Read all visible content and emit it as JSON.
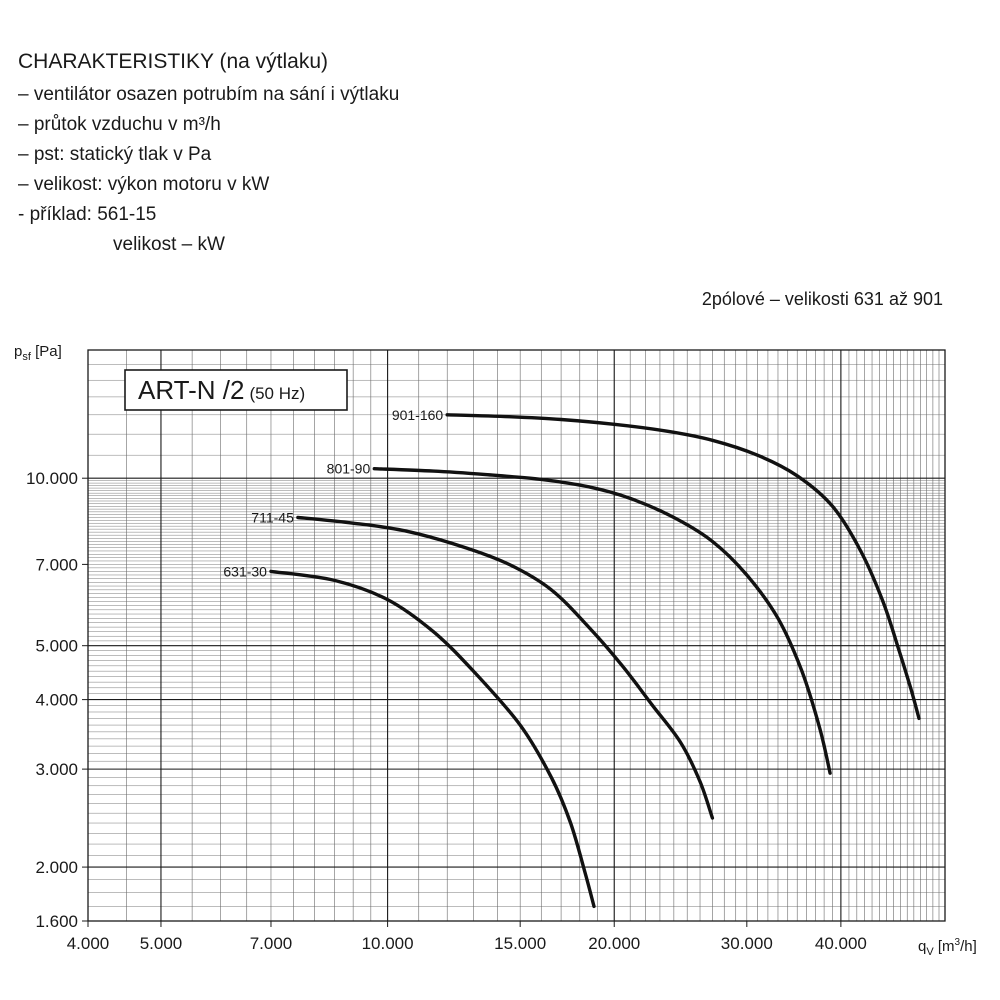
{
  "header": {
    "title": "CHARAKTERISTIKY (na výtlaku)",
    "lines": [
      "– ventilátor osazen potrubím na sání i výtlaku",
      "– průtok vzduchu v m³/h",
      "– pst: statický tlak v Pa",
      "– velikost: výkon motoru v kW",
      "- příklad: 561-15",
      "velikost – kW"
    ]
  },
  "subtitle": "2pólové – velikosti 631 až 901",
  "chart_data": {
    "type": "line",
    "x_scale": "log",
    "y_scale": "log",
    "xlim": [
      4000,
      55000
    ],
    "ylim": [
      1600,
      17000
    ],
    "grid": true,
    "box_label": {
      "main": "ART-N /2",
      "sub": "(50 Hz)"
    },
    "ylabel": {
      "main": "p",
      "sub": "sf",
      "unit": " [Pa]"
    },
    "xlabel": {
      "main": "q",
      "sub": "V",
      "unit_pre": " [m",
      "sup": "3",
      "unit_post": "/h]"
    },
    "x_ticks": [
      {
        "value": 4000,
        "label": "4.000"
      },
      {
        "value": 5000,
        "label": "5.000"
      },
      {
        "value": 7000,
        "label": "7.000"
      },
      {
        "value": 10000,
        "label": "10.000"
      },
      {
        "value": 15000,
        "label": "15.000"
      },
      {
        "value": 20000,
        "label": "20.000"
      },
      {
        "value": 30000,
        "label": "30.000"
      },
      {
        "value": 40000,
        "label": "40.000"
      }
    ],
    "y_ticks": [
      {
        "value": 1600,
        "label": "1.600"
      },
      {
        "value": 2000,
        "label": "2.000"
      },
      {
        "value": 3000,
        "label": "3.000"
      },
      {
        "value": 4000,
        "label": "4.000"
      },
      {
        "value": 5000,
        "label": "5.000"
      },
      {
        "value": 7000,
        "label": "7.000"
      },
      {
        "value": 10000,
        "label": "10.000"
      }
    ],
    "series": [
      {
        "name": "631-30",
        "x": [
          7000,
          8500,
          10000,
          11500,
          13000,
          15000,
          16500,
          17500,
          18300,
          18800
        ],
        "y": [
          6800,
          6550,
          6050,
          5300,
          4500,
          3600,
          2900,
          2400,
          1950,
          1700
        ]
      },
      {
        "name": "711-45",
        "x": [
          7600,
          9000,
          10500,
          12500,
          14500,
          16500,
          18500,
          20500,
          22500,
          24500,
          26000,
          27000
        ],
        "y": [
          8500,
          8300,
          8050,
          7550,
          7000,
          6300,
          5400,
          4600,
          3900,
          3350,
          2850,
          2450
        ]
      },
      {
        "name": "801-90",
        "x": [
          9600,
          11500,
          13500,
          16000,
          18500,
          21000,
          24000,
          27000,
          30000,
          33000,
          35500,
          37500,
          38700
        ],
        "y": [
          10400,
          10300,
          10150,
          9950,
          9650,
          9200,
          8500,
          7700,
          6700,
          5600,
          4500,
          3550,
          2950
        ]
      },
      {
        "name": "901-160",
        "x": [
          12000,
          14500,
          17000,
          20000,
          23500,
          27000,
          31000,
          35000,
          39000,
          42500,
          45500,
          47800,
          49500,
          50800
        ],
        "y": [
          13000,
          12900,
          12750,
          12500,
          12150,
          11700,
          11000,
          10100,
          8900,
          7400,
          6000,
          4900,
          4200,
          3700
        ]
      }
    ]
  }
}
